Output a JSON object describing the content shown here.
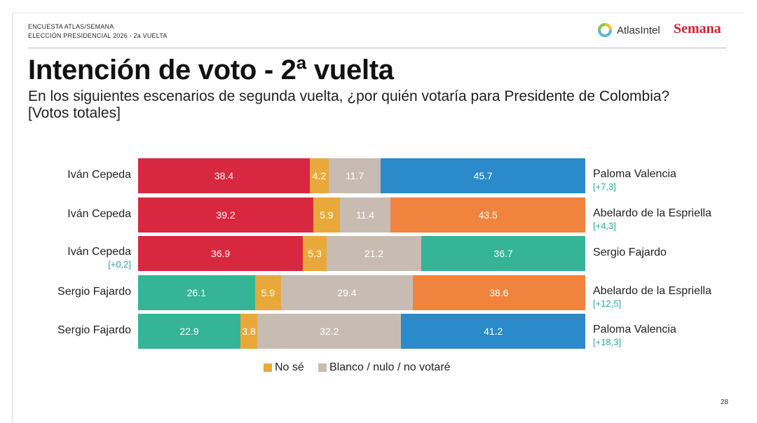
{
  "header": {
    "line1": "ENCUESTA ATLAS/SEMANA",
    "line2": "ELECCIÓN PRESIDENCIAL 2026 - 2a VUELTA",
    "atlas_logo_text": "AtlasIntel",
    "semana_logo_text": "Semana"
  },
  "title": "Intención de voto - 2ª vuelta",
  "subtitle_line1": "En los siguientes escenarios de segunda vuelta, ¿por quién votaría para Presidente de Colombia?",
  "subtitle_line2": "[Votos totales]",
  "colors": {
    "red": "#d8283f",
    "yellow": "#e9a93a",
    "gray": "#c8bcb2",
    "blue": "#2b8ac9",
    "orange": "#f0843e",
    "teal": "#36b497",
    "diff_text": "#2aa8a0"
  },
  "chart_data": {
    "type": "bar",
    "orientation": "horizontal-stacked",
    "scale_max": 100,
    "legend": [
      {
        "label": "No sé",
        "color": "#e9a93a"
      },
      {
        "label": "Blanco / nulo / no votaré",
        "color": "#c8bcb2"
      }
    ],
    "rows": [
      {
        "left": {
          "name": "Iván Cepeda",
          "value": 38.4,
          "label": "38.4",
          "color": "#d8283f",
          "diff": ""
        },
        "nose": {
          "value": 4.2,
          "label": "4.2"
        },
        "blank": {
          "value": 11.7,
          "label": "11.7"
        },
        "right": {
          "name": "Paloma Valencia",
          "value": 45.7,
          "label": "45.7",
          "color": "#2b8ac9",
          "diff": "[+7,3]"
        }
      },
      {
        "left": {
          "name": "Iván Cepeda",
          "value": 39.2,
          "label": "39.2",
          "color": "#d8283f",
          "diff": ""
        },
        "nose": {
          "value": 5.9,
          "label": "5.9"
        },
        "blank": {
          "value": 11.4,
          "label": "11.4"
        },
        "right": {
          "name": "Abelardo de la Espriella",
          "value": 43.5,
          "label": "43.5",
          "color": "#f0843e",
          "diff": "[+4,3]"
        }
      },
      {
        "left": {
          "name": "Iván Cepeda",
          "value": 36.9,
          "label": "36.9",
          "color": "#d8283f",
          "diff": "[+0,2]"
        },
        "nose": {
          "value": 5.3,
          "label": "5.3"
        },
        "blank": {
          "value": 21.2,
          "label": "21.2"
        },
        "right": {
          "name": "Sergio Fajardo",
          "value": 36.7,
          "label": "36.7",
          "color": "#36b497",
          "diff": ""
        }
      },
      {
        "left": {
          "name": "Sergio Fajardo",
          "value": 26.1,
          "label": "26.1",
          "color": "#36b497",
          "diff": ""
        },
        "nose": {
          "value": 5.9,
          "label": "5.9"
        },
        "blank": {
          "value": 29.4,
          "label": "29.4"
        },
        "right": {
          "name": "Abelardo de la Espriella",
          "value": 38.6,
          "label": "38.6",
          "color": "#f0843e",
          "diff": "[+12,5]"
        }
      },
      {
        "left": {
          "name": "Sergio Fajardo",
          "value": 22.9,
          "label": "22.9",
          "color": "#36b497",
          "diff": ""
        },
        "nose": {
          "value": 3.8,
          "label": "3.8"
        },
        "blank": {
          "value": 32.2,
          "label": "32.2"
        },
        "right": {
          "name": "Paloma Valencia",
          "value": 41.2,
          "label": "41.2",
          "color": "#2b8ac9",
          "diff": "[+18,3]"
        }
      }
    ]
  },
  "page_number": "28"
}
